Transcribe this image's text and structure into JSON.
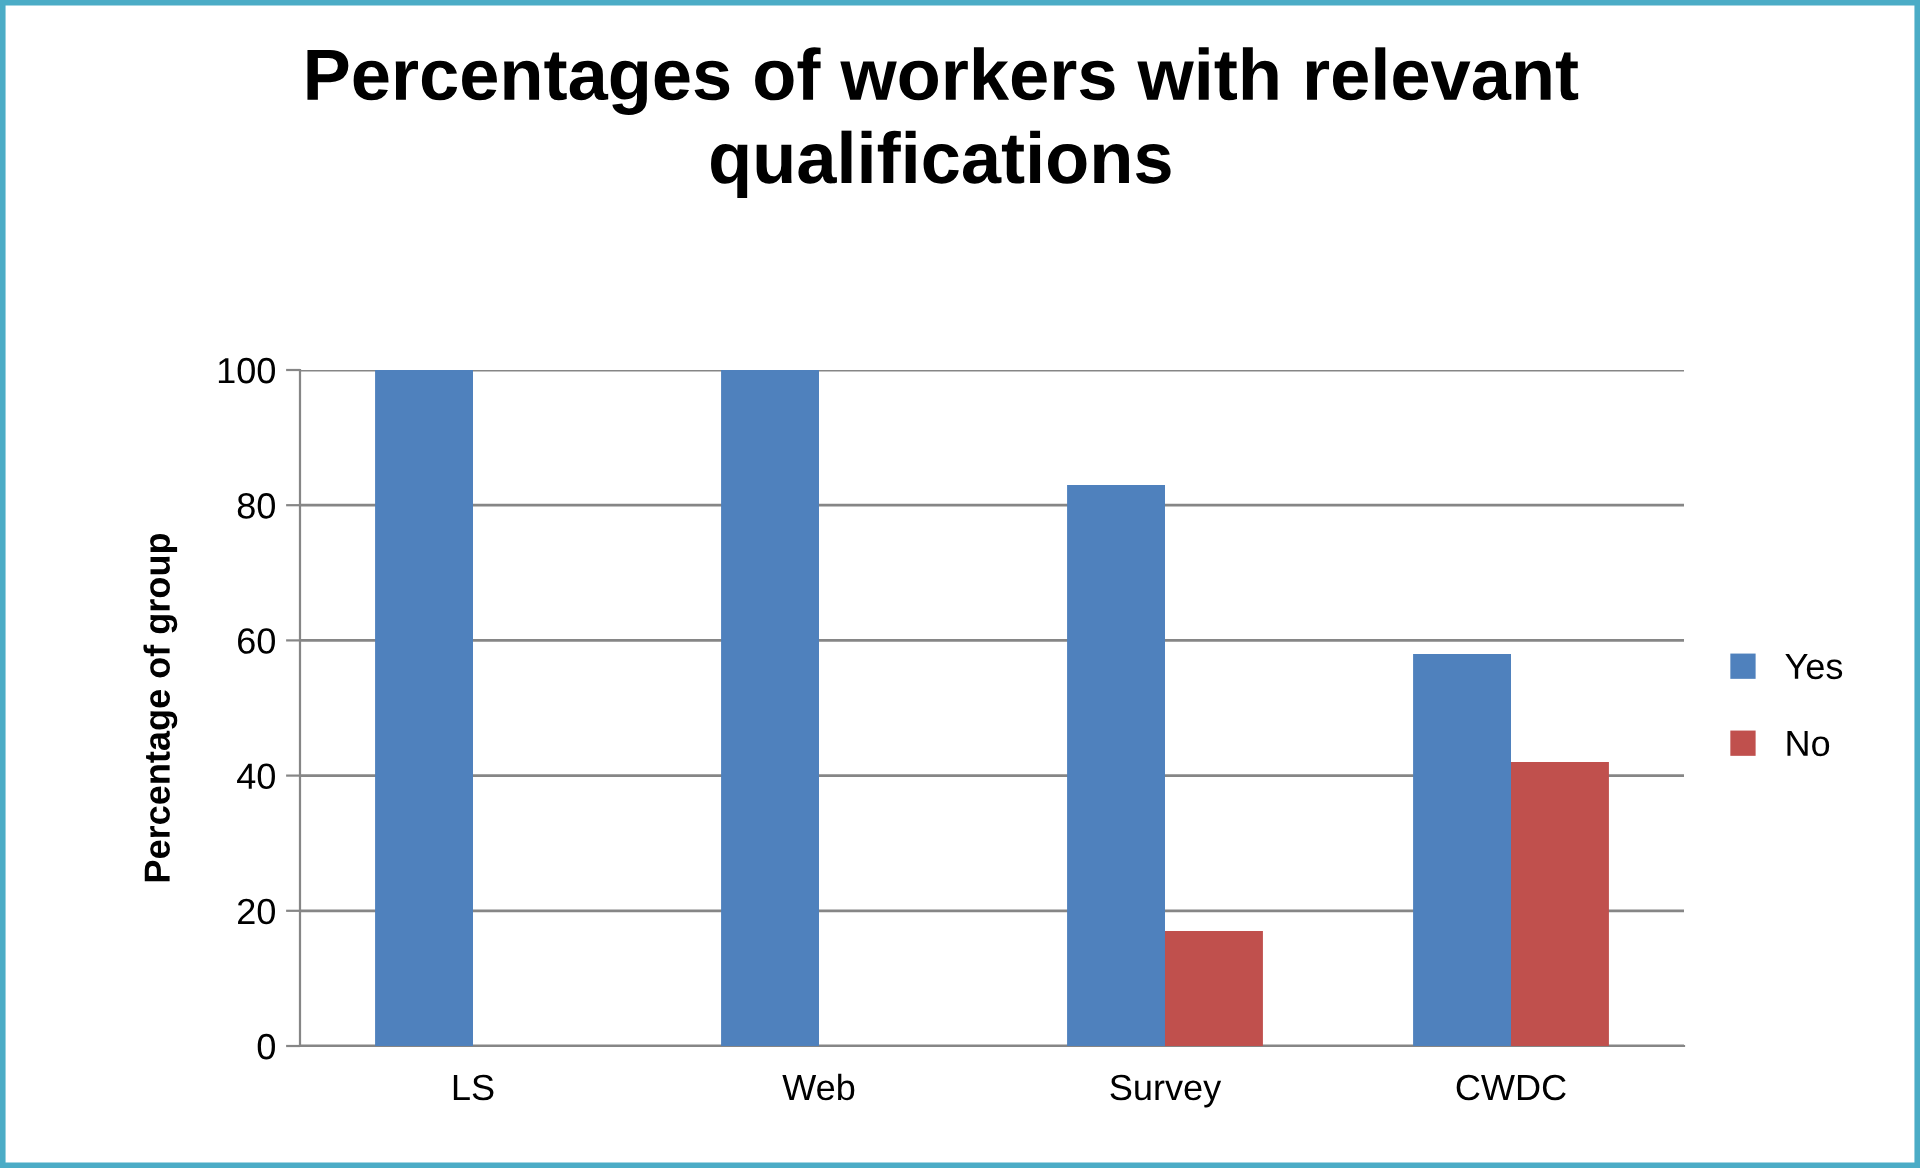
{
  "chart_data": {
    "type": "bar",
    "title": "Percentages of workers with relevant\nqualifications",
    "ylabel": "Percentage of group",
    "categories": [
      "LS",
      "Web",
      "Survey",
      "CWDC"
    ],
    "series": [
      {
        "name": "Yes",
        "color": "#4f81bd",
        "values": [
          100,
          100,
          83,
          58
        ]
      },
      {
        "name": "No",
        "color": "#c0504d",
        "values": [
          0,
          0,
          17,
          42
        ]
      }
    ],
    "ylim": [
      0,
      100
    ],
    "yticks": [
      0,
      20,
      40,
      60,
      80,
      100
    ],
    "grid": "y",
    "legend": "right"
  }
}
